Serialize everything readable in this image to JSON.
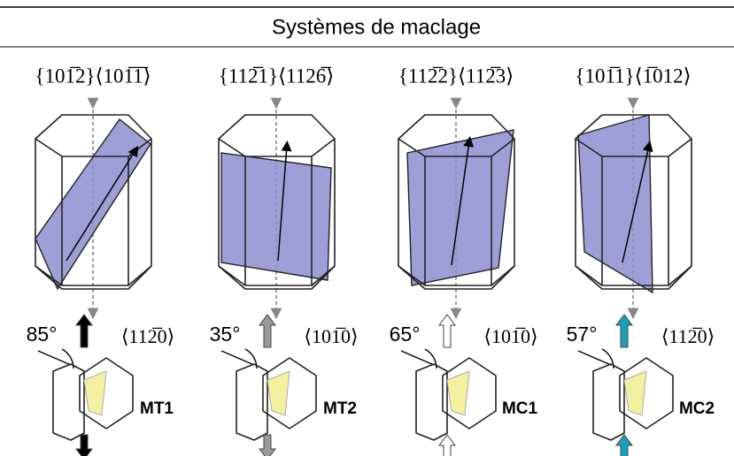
{
  "header": {
    "title": "Systèmes de maclage"
  },
  "systems": [
    {
      "plane": "{101̅2}⟨101̅1̅⟩",
      "angle": "85°",
      "axis": "⟨112̅0⟩",
      "name": "MT1"
    },
    {
      "plane": "{112̅1}⟨1126̅⟩",
      "angle": "35°",
      "axis": "⟨101̅0⟩",
      "name": "MT2"
    },
    {
      "plane": "{112̅2}⟨112̅3⟩",
      "angle": "65°",
      "axis": "⟨101̅0⟩",
      "name": "MC1"
    },
    {
      "plane": "{101̅1}⟨1̅012⟩",
      "angle": "57°",
      "axis": "⟨112̅0⟩",
      "name": "MC2"
    }
  ]
}
